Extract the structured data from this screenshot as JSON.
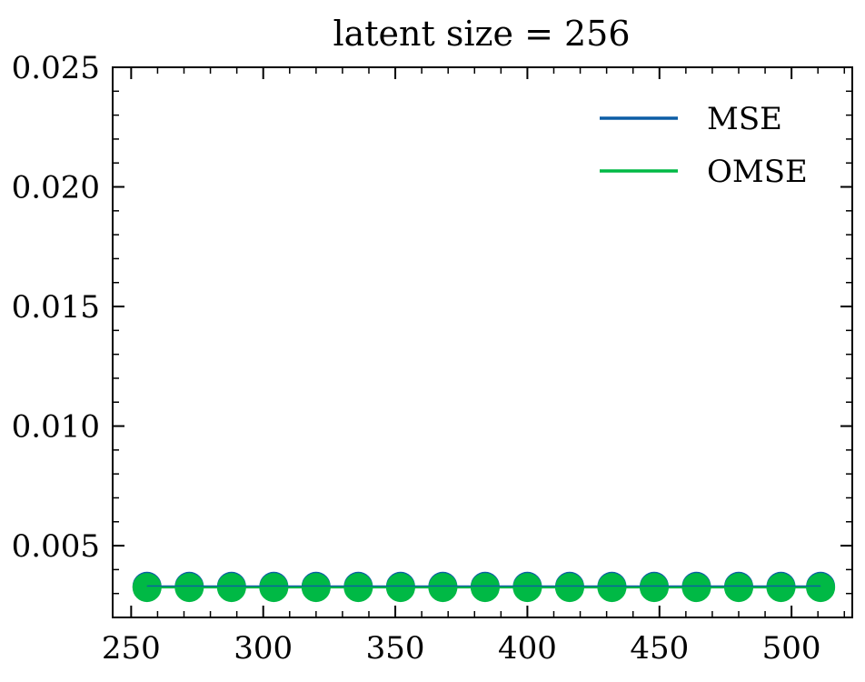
{
  "chart_data": {
    "type": "scatter",
    "title": "latent size = 256",
    "xlabel": "",
    "ylabel": "",
    "xlim": [
      243,
      523
    ],
    "ylim": [
      0.002,
      0.025
    ],
    "x_ticks": [
      250,
      300,
      350,
      400,
      450,
      500
    ],
    "x_tick_labels": [
      "250",
      "300",
      "350",
      "400",
      "450",
      "500"
    ],
    "y_ticks": [
      0.005,
      0.01,
      0.015,
      0.02,
      0.025
    ],
    "y_tick_labels": [
      "0.005",
      "0.010",
      "0.015",
      "0.020",
      "0.025"
    ],
    "grid": false,
    "legend_position": "top-right",
    "series": [
      {
        "name": "MSE",
        "color": "#0C5DA5",
        "style": "line-with-markers",
        "x": [
          256,
          272,
          288,
          304,
          320,
          336,
          352,
          368,
          384,
          400,
          416,
          432,
          448,
          464,
          480,
          496,
          511
        ],
        "values": [
          0.0033,
          0.0033,
          0.0033,
          0.0033,
          0.0033,
          0.0033,
          0.0033,
          0.0033,
          0.0033,
          0.0033,
          0.0033,
          0.0033,
          0.0033,
          0.0033,
          0.0033,
          0.0033,
          0.0033
        ]
      },
      {
        "name": "OMSE",
        "color": "#00B945",
        "style": "line-with-markers",
        "x": [
          256,
          272,
          288,
          304,
          320,
          336,
          352,
          368,
          384,
          400,
          416,
          432,
          448,
          464,
          480,
          496,
          511
        ],
        "values": [
          0.00325,
          0.00325,
          0.00325,
          0.00325,
          0.00325,
          0.00325,
          0.00325,
          0.00325,
          0.00325,
          0.00325,
          0.00325,
          0.00325,
          0.00325,
          0.00325,
          0.00325,
          0.00325,
          0.00325
        ]
      }
    ]
  }
}
